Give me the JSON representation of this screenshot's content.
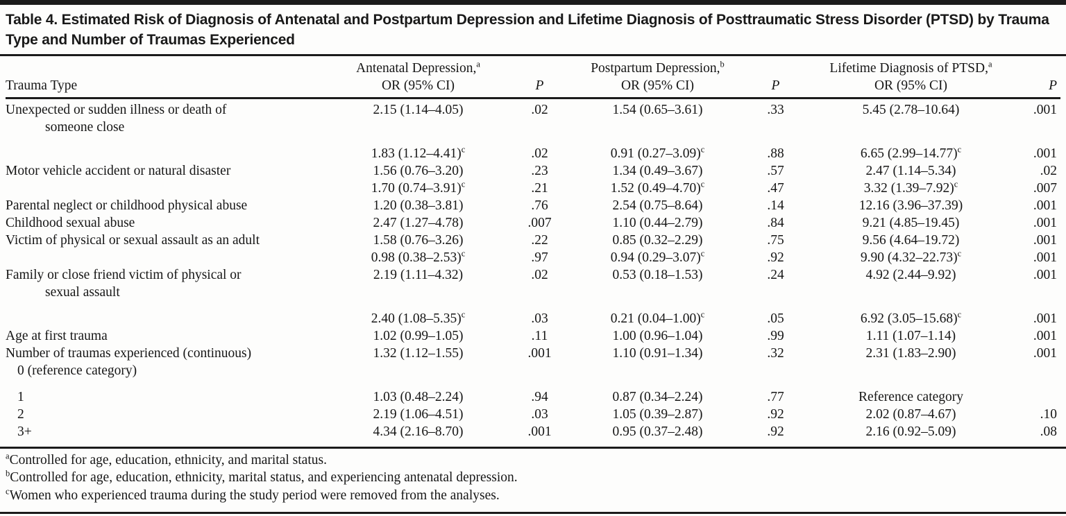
{
  "page": {
    "background_color": "#fdfdfc",
    "text_color": "#161616",
    "rule_color": "#1b1b1b"
  },
  "table": {
    "title": "Table 4. Estimated Risk of Diagnosis of Antenatal and Postpartum Depression and Lifetime Diagnosis of Posttraumatic Stress Disorder (PTSD) by Trauma Type and Number of Traumas Experienced",
    "header": {
      "trauma_type": "Trauma Type",
      "groups": [
        {
          "line1": "Antenatal Depression,",
          "sup": "a",
          "line2": "OR (95% CI)",
          "p": "P"
        },
        {
          "line1": "Postpartum Depression,",
          "sup": "b",
          "line2": "OR (95% CI)",
          "p": "P"
        },
        {
          "line1": "Lifetime Diagnosis of PTSD,",
          "sup": "a",
          "line2": "OR (95% CI)",
          "p": "P"
        }
      ]
    },
    "rows": [
      {
        "label": "Unexpected or sudden illness or death of",
        "label2": "someone close",
        "cells": [
          "2.15 (1.14–4.05)",
          ".02",
          "1.54 (0.65–3.61)",
          ".33",
          "5.45 (2.78–10.64)",
          ".001"
        ]
      },
      {
        "label": "",
        "gap": true,
        "cells": [
          {
            "v": "1.83 (1.12–4.41)",
            "s": "c"
          },
          ".02",
          {
            "v": "0.91 (0.27–3.09)",
            "s": "c"
          },
          ".88",
          {
            "v": "6.65 (2.99–14.77)",
            "s": "c"
          },
          ".001"
        ]
      },
      {
        "label": "Motor vehicle accident or natural disaster",
        "cells": [
          "1.56 (0.76–3.20)",
          ".23",
          "1.34 (0.49–3.67)",
          ".57",
          "2.47 (1.14–5.34)",
          ".02"
        ]
      },
      {
        "label": "",
        "cells": [
          {
            "v": "1.70 (0.74–3.91)",
            "s": "c"
          },
          ".21",
          {
            "v": "1.52 (0.49–4.70)",
            "s": "c"
          },
          ".47",
          {
            "v": "3.32 (1.39–7.92)",
            "s": "c"
          },
          ".007"
        ]
      },
      {
        "label": "Parental neglect or childhood physical abuse",
        "cells": [
          "1.20 (0.38–3.81)",
          ".76",
          "2.54 (0.75–8.64)",
          ".14",
          "12.16 (3.96–37.39)",
          ".001"
        ]
      },
      {
        "label": "Childhood sexual abuse",
        "cells": [
          "2.47 (1.27–4.78)",
          ".007",
          "1.10 (0.44–2.79)",
          ".84",
          "9.21 (4.85–19.45)",
          ".001"
        ]
      },
      {
        "label": "Victim of physical or sexual assault as an adult",
        "cells": [
          "1.58 (0.76–3.26)",
          ".22",
          "0.85 (0.32–2.29)",
          ".75",
          "9.56 (4.64–19.72)",
          ".001"
        ]
      },
      {
        "label": "",
        "cells": [
          {
            "v": "0.98 (0.38–2.53)",
            "s": "c"
          },
          ".97",
          {
            "v": "0.94 (0.29–3.07)",
            "s": "c"
          },
          ".92",
          {
            "v": "9.90 (4.32–22.73)",
            "s": "c"
          },
          ".001"
        ]
      },
      {
        "label": "Family or close friend victim of physical or",
        "label2": "sexual assault",
        "cells": [
          "2.19 (1.11–4.32)",
          ".02",
          "0.53 (0.18–1.53)",
          ".24",
          "4.92 (2.44–9.92)",
          ".001"
        ]
      },
      {
        "label": "",
        "gap": true,
        "cells": [
          {
            "v": "2.40 (1.08–5.35)",
            "s": "c"
          },
          ".03",
          {
            "v": "0.21 (0.04–1.00)",
            "s": "c"
          },
          ".05",
          {
            "v": "6.92 (3.05–15.68)",
            "s": "c"
          },
          ".001"
        ]
      },
      {
        "label": "Age at first trauma",
        "cells": [
          "1.02 (0.99–1.05)",
          ".11",
          "1.00 (0.96–1.04)",
          ".99",
          "1.11 (1.07–1.14)",
          ".001"
        ]
      },
      {
        "label": "Number of traumas experienced (continuous)",
        "cells": [
          "1.32 (1.12–1.55)",
          ".001",
          "1.10 (0.91–1.34)",
          ".32",
          "2.31 (1.83–2.90)",
          ".001"
        ]
      },
      {
        "label": "0 (reference category)",
        "indent": true,
        "cells": [
          "",
          "",
          "",
          "",
          "",
          ""
        ]
      },
      {
        "label": "1",
        "indent": true,
        "gap": true,
        "cells": [
          "1.03 (0.48–2.24)",
          ".94",
          "0.87 (0.34–2.24)",
          ".77",
          "Reference category",
          ""
        ]
      },
      {
        "label": "2",
        "indent": true,
        "cells": [
          "2.19 (1.06–4.51)",
          ".03",
          "1.05 (0.39–2.87)",
          ".92",
          "2.02 (0.87–4.67)",
          ".10"
        ]
      },
      {
        "label": "3+",
        "indent": true,
        "cells": [
          "4.34 (2.16–8.70)",
          ".001",
          "0.95 (0.37–2.48)",
          ".92",
          "2.16 (0.92–5.09)",
          ".08"
        ]
      }
    ],
    "footnotes": [
      {
        "sup": "a",
        "text": "Controlled for age, education, ethnicity, and marital status."
      },
      {
        "sup": "b",
        "text": "Controlled for age, education, ethnicity, marital status, and experiencing antenatal depression."
      },
      {
        "sup": "c",
        "text": "Women who experienced trauma during the study period were removed from the analyses."
      }
    ]
  }
}
